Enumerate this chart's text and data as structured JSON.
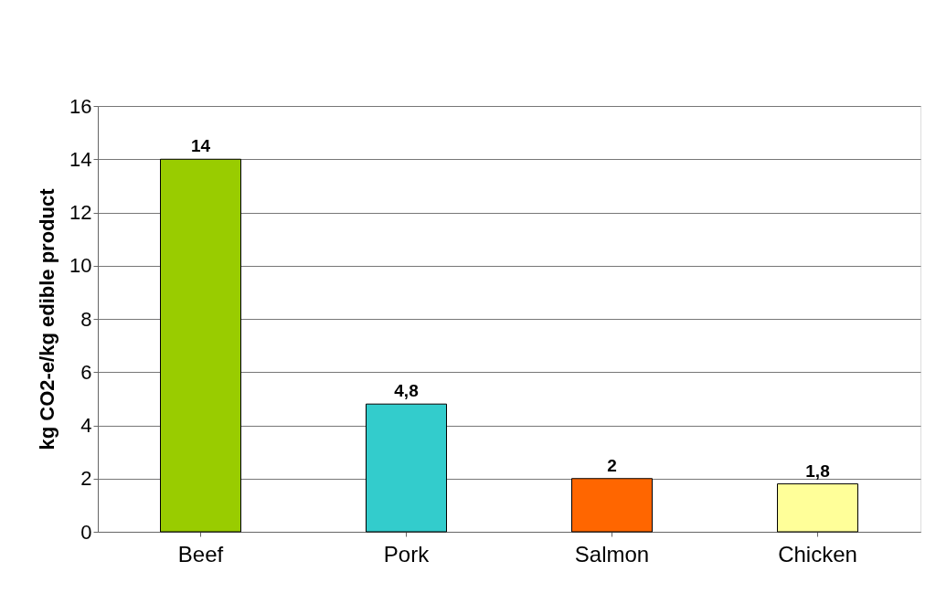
{
  "chart_data": {
    "type": "bar",
    "ylabel": "kg CO2-e/kg edible product",
    "categories": [
      "Beef",
      "Pork",
      "Salmon",
      "Chicken"
    ],
    "values": [
      14,
      4.8,
      2,
      1.8
    ],
    "colors": [
      "#99cc00",
      "#33cccc",
      "#ff6600",
      "#ffff99"
    ],
    "value_labels": [
      "14",
      "4,8",
      "2",
      "1,8"
    ],
    "ylim": [
      0,
      16
    ],
    "yticks": [
      0,
      2,
      4,
      6,
      8,
      10,
      12,
      14,
      16
    ],
    "grid": "y"
  }
}
